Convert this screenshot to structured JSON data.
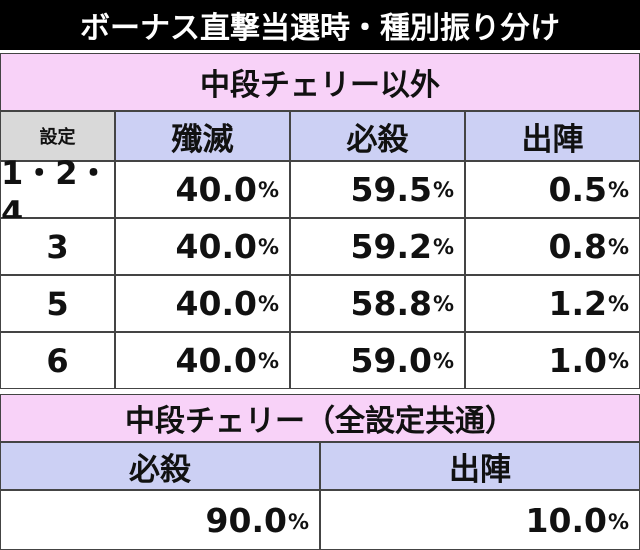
{
  "title": "ボーナス直撃当選時・種別振り分け",
  "table1": {
    "title": "中段チェリー以外",
    "header": [
      "設定",
      "殲滅",
      "必殺",
      "出陣"
    ],
    "rows": [
      [
        "1・2・4",
        "40.0%",
        "59.5%",
        "0.5%"
      ],
      [
        "3",
        "40.0%",
        "59.2%",
        "0.8%"
      ],
      [
        "5",
        "40.0%",
        "58.8%",
        "1.2%"
      ],
      [
        "6",
        "40.0%",
        "59.0%",
        "1.0%"
      ]
    ]
  },
  "table2": {
    "title": "中段チェリー（全設定共通）",
    "header": [
      "必殺",
      "出陣"
    ],
    "rows": [
      [
        "90.0%",
        "10.0%"
      ]
    ]
  }
}
